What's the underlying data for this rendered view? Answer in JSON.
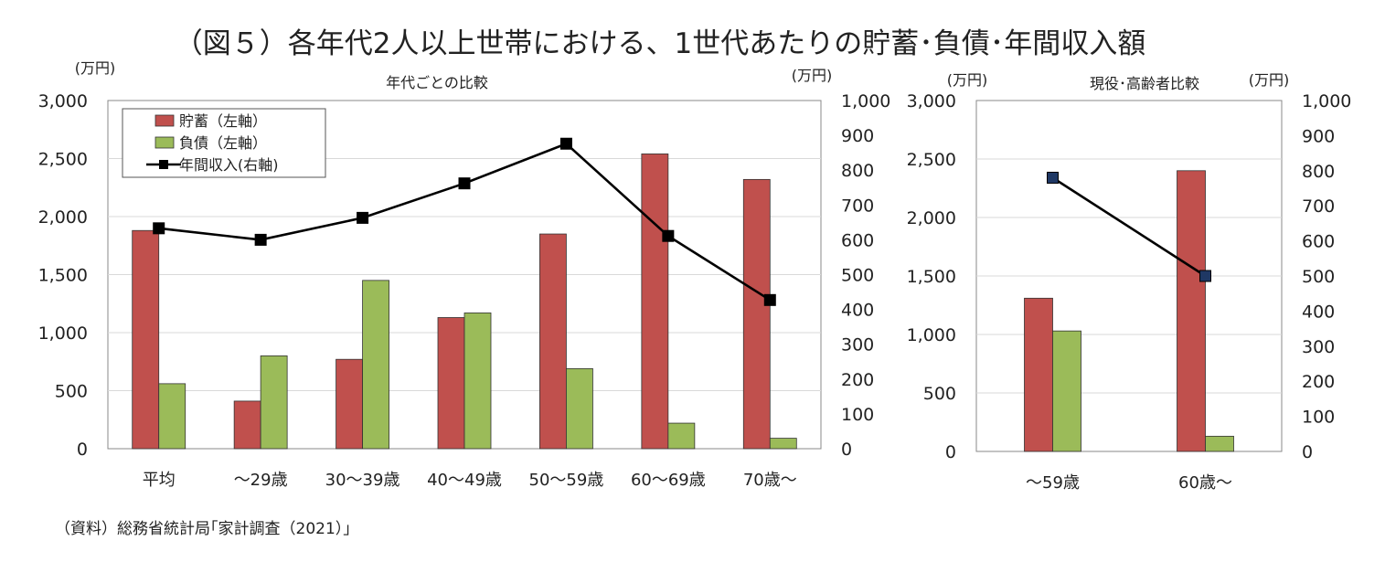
{
  "title": "（図５）各年代2人以上世帯における、1世代あたりの貯蓄･負債･年間収入額",
  "source": "（資料）総務省統計局｢家計調査（2021）｣",
  "colors": {
    "savings": "#c0504d",
    "debt": "#9bbb59",
    "income": "#000000",
    "income_marker_right": "#1f3864"
  },
  "chart_data": [
    {
      "type": "bar",
      "subtitle": "年代ごとの比較",
      "y_left_unit": "(万円)",
      "y_right_unit": "(万円)",
      "ylim_left": [
        0,
        3000
      ],
      "ylim_right": [
        0,
        1000
      ],
      "yticks_left": [
        "0",
        "500",
        "1,000",
        "1,500",
        "2,000",
        "2,500",
        "3,000"
      ],
      "yticks_right": [
        "0",
        "100",
        "200",
        "300",
        "400",
        "500",
        "600",
        "700",
        "800",
        "900",
        "1,000"
      ],
      "grid": true,
      "legend_position": "top-left",
      "categories": [
        "平均",
        "～29歳",
        "30～39歳",
        "40～49歳",
        "50～59歳",
        "60～69歳",
        "70歳～"
      ],
      "series": [
        {
          "name": "貯蓄（左軸）",
          "type": "bar",
          "axis": "left",
          "values": [
            1880,
            410,
            770,
            1130,
            1850,
            2540,
            2320
          ]
        },
        {
          "name": "負債（左軸）",
          "type": "bar",
          "axis": "left",
          "values": [
            560,
            800,
            1450,
            1170,
            690,
            220,
            90
          ]
        },
        {
          "name": "年間収入(右軸)",
          "type": "line",
          "axis": "right",
          "values": [
            633,
            600,
            663,
            762,
            876,
            611,
            427
          ]
        }
      ]
    },
    {
      "type": "bar",
      "subtitle": "現役･高齢者比較",
      "y_left_unit": "(万円)",
      "y_right_unit": "(万円)",
      "ylim_left": [
        0,
        3000
      ],
      "ylim_right": [
        0,
        1000
      ],
      "yticks_left": [
        "0",
        "500",
        "1,000",
        "1,500",
        "2,000",
        "2,500",
        "3,000"
      ],
      "yticks_right": [
        "0",
        "100",
        "200",
        "300",
        "400",
        "500",
        "600",
        "700",
        "800",
        "900",
        "1,000"
      ],
      "grid": true,
      "categories": [
        "～59歳",
        "60歳～"
      ],
      "series": [
        {
          "name": "貯蓄",
          "type": "bar",
          "axis": "left",
          "values": [
            1310,
            2400
          ]
        },
        {
          "name": "負債",
          "type": "bar",
          "axis": "left",
          "values": [
            1030,
            130
          ]
        },
        {
          "name": "年間収入",
          "type": "line",
          "axis": "right",
          "values": [
            780,
            500
          ]
        }
      ]
    }
  ]
}
